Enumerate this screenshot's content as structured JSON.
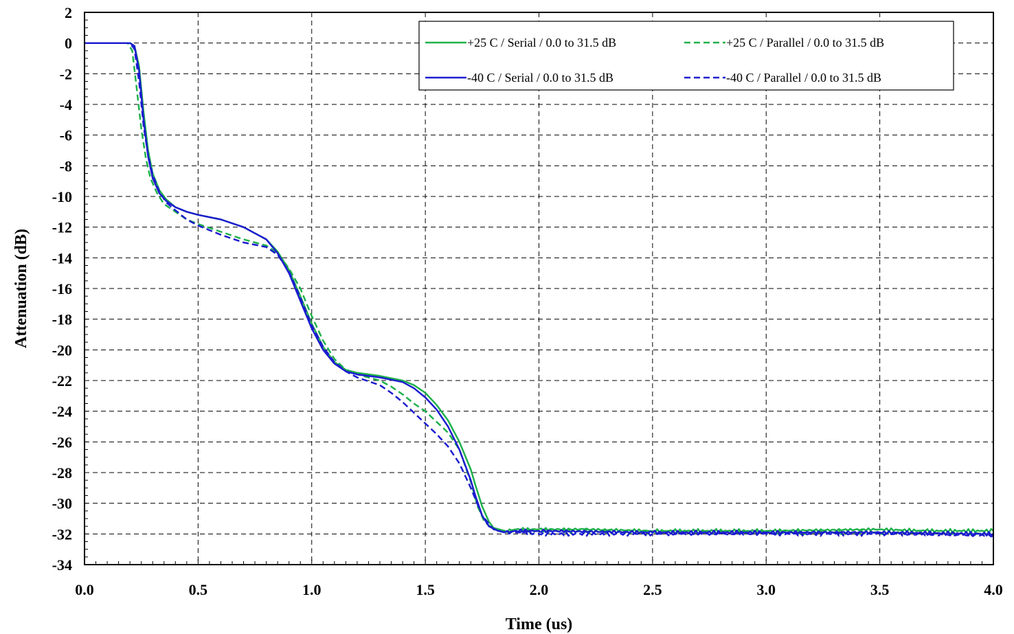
{
  "chart_data": {
    "type": "line",
    "xlabel": "Time (us)",
    "ylabel": "Attenuation (dB)",
    "xlim": [
      0,
      4
    ],
    "ylim": [
      -34,
      2
    ],
    "grid": true,
    "legend_position": "top-right",
    "x_ticks": [
      "0.0",
      "0.5",
      "1.0",
      "1.5",
      "2.0",
      "2.5",
      "3.0",
      "3.5",
      "4.0"
    ],
    "y_ticks": [
      "2",
      "0",
      "-2",
      "-4",
      "-6",
      "-8",
      "-10",
      "-12",
      "-14",
      "-16",
      "-18",
      "-20",
      "-22",
      "-24",
      "-26",
      "-28",
      "-30",
      "-32",
      "-34"
    ],
    "series": [
      {
        "name": "+25 C / Serial / 0.0 to 31.5 dB",
        "color": "#1fb14b",
        "dash": "solid",
        "x": [
          0,
          0.2,
          0.22,
          0.24,
          0.26,
          0.28,
          0.3,
          0.33,
          0.36,
          0.4,
          0.45,
          0.5,
          0.6,
          0.7,
          0.8,
          0.85,
          0.9,
          0.95,
          1.0,
          1.05,
          1.1,
          1.15,
          1.2,
          1.3,
          1.4,
          1.45,
          1.5,
          1.55,
          1.6,
          1.65,
          1.7,
          1.72,
          1.75,
          1.78,
          1.8,
          1.85,
          1.9,
          2.0,
          2.2,
          2.5,
          3.0,
          3.5,
          3.7,
          4.0
        ],
        "y": [
          0,
          0,
          -0.2,
          -1.5,
          -4.5,
          -7,
          -8.5,
          -9.6,
          -10.2,
          -10.7,
          -11.0,
          -11.2,
          -11.5,
          -12.0,
          -12.8,
          -13.6,
          -14.8,
          -16.5,
          -18.3,
          -19.8,
          -20.8,
          -21.3,
          -21.5,
          -21.7,
          -22.0,
          -22.3,
          -22.8,
          -23.6,
          -24.6,
          -26.0,
          -27.8,
          -28.8,
          -30.2,
          -31.2,
          -31.6,
          -31.8,
          -31.7,
          -31.7,
          -31.7,
          -31.8,
          -31.8,
          -31.7,
          -31.8,
          -31.8
        ]
      },
      {
        "name": "+25 C / Parallel / 0.0 to 31.5 dB",
        "color": "#1fb14b",
        "dash": "dashed",
        "x": [
          0,
          0.19,
          0.21,
          0.23,
          0.25,
          0.27,
          0.29,
          0.32,
          0.35,
          0.4,
          0.45,
          0.5,
          0.6,
          0.7,
          0.8,
          0.85,
          0.9,
          0.95,
          1.0,
          1.05,
          1.1,
          1.15,
          1.2,
          1.3,
          1.35,
          1.4,
          1.45,
          1.5,
          1.55,
          1.6,
          1.65,
          1.7,
          1.73,
          1.76,
          1.8,
          1.85,
          1.9,
          2.0,
          2.5,
          3.0,
          3.5,
          4.0
        ],
        "y": [
          0,
          0,
          -0.5,
          -3.0,
          -5.6,
          -7.5,
          -8.8,
          -9.8,
          -10.5,
          -11.0,
          -11.5,
          -11.8,
          -12.3,
          -12.8,
          -13.2,
          -13.7,
          -14.7,
          -16.0,
          -17.8,
          -19.4,
          -20.6,
          -21.3,
          -21.6,
          -22.0,
          -22.4,
          -22.9,
          -23.5,
          -24.0,
          -24.7,
          -25.4,
          -26.5,
          -28.6,
          -30.2,
          -31.2,
          -31.7,
          -31.8,
          -31.8,
          -31.8,
          -31.9,
          -31.9,
          -31.9,
          -32.0
        ]
      },
      {
        "name": "-40 C / Serial / 0.0 to 31.5 dB",
        "color": "#1c1ccf",
        "dash": "solid",
        "x": [
          0,
          0.2,
          0.22,
          0.24,
          0.26,
          0.28,
          0.3,
          0.33,
          0.36,
          0.4,
          0.45,
          0.5,
          0.6,
          0.7,
          0.8,
          0.85,
          0.9,
          0.95,
          1.0,
          1.05,
          1.1,
          1.15,
          1.2,
          1.3,
          1.4,
          1.45,
          1.5,
          1.55,
          1.6,
          1.65,
          1.7,
          1.72,
          1.75,
          1.78,
          1.82,
          1.85,
          1.9,
          2.0,
          2.5,
          3.0,
          3.5,
          4.0
        ],
        "y": [
          0,
          0,
          -0.2,
          -1.8,
          -5.0,
          -7.4,
          -8.8,
          -9.8,
          -10.3,
          -10.7,
          -11.0,
          -11.2,
          -11.5,
          -12.0,
          -12.8,
          -13.7,
          -15.0,
          -16.8,
          -18.6,
          -20.0,
          -20.9,
          -21.4,
          -21.6,
          -21.8,
          -22.1,
          -22.5,
          -23.1,
          -23.9,
          -25.0,
          -26.5,
          -28.5,
          -29.5,
          -30.8,
          -31.5,
          -31.8,
          -31.9,
          -31.8,
          -31.8,
          -31.9,
          -31.9,
          -31.9,
          -32.0
        ]
      },
      {
        "name": "-40 C / Parallel / 0.0 to 31.5 dB",
        "color": "#1c1ccf",
        "dash": "dashed",
        "x": [
          0,
          0.2,
          0.22,
          0.24,
          0.26,
          0.28,
          0.3,
          0.33,
          0.36,
          0.4,
          0.45,
          0.5,
          0.6,
          0.7,
          0.8,
          0.85,
          0.9,
          0.95,
          1.0,
          1.05,
          1.1,
          1.15,
          1.2,
          1.3,
          1.35,
          1.4,
          1.45,
          1.5,
          1.55,
          1.6,
          1.65,
          1.7,
          1.75,
          1.8,
          1.85,
          1.9,
          2.0,
          2.5,
          3.0,
          3.5,
          4.0
        ],
        "y": [
          0,
          0,
          -0.4,
          -2.5,
          -5.4,
          -7.3,
          -8.6,
          -9.7,
          -10.4,
          -10.9,
          -11.5,
          -11.9,
          -12.5,
          -13.0,
          -13.3,
          -13.8,
          -14.9,
          -16.6,
          -18.4,
          -19.8,
          -20.8,
          -21.4,
          -21.8,
          -22.3,
          -22.8,
          -23.4,
          -24.1,
          -24.8,
          -25.5,
          -26.3,
          -27.4,
          -29.0,
          -30.8,
          -31.7,
          -31.9,
          -31.9,
          -32.0,
          -32.0,
          -32.0,
          -32.0,
          -32.1
        ]
      }
    ]
  }
}
